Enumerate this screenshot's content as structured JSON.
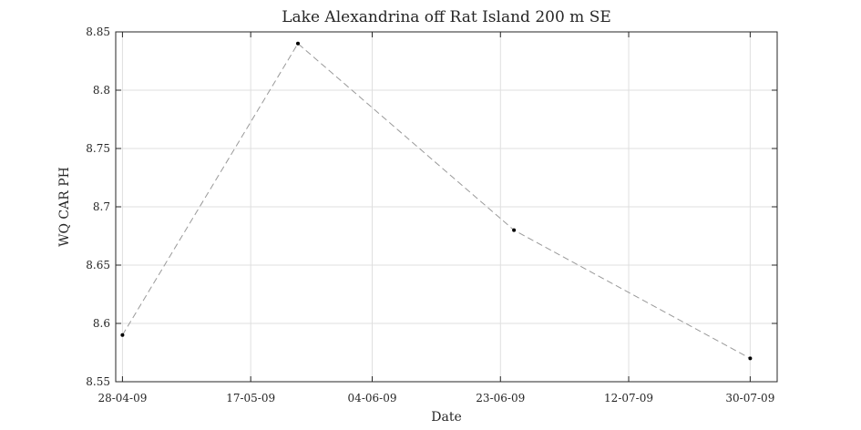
{
  "chart_data": {
    "type": "line",
    "title": "Lake Alexandrina off Rat Island 200 m SE",
    "xlabel": "Date",
    "ylabel": "WQ CAR PH",
    "x_ticks": [
      "28-04-09",
      "17-05-09",
      "04-06-09",
      "23-06-09",
      "12-07-09",
      "30-07-09"
    ],
    "y_ticks": [
      "8.55",
      "8.6",
      "8.65",
      "8.7",
      "8.75",
      "8.8",
      "8.85"
    ],
    "xlim": [
      "2009-04-27",
      "2009-08-03"
    ],
    "ylim": [
      8.55,
      8.85
    ],
    "grid": true,
    "line_style": "dashed",
    "line_color": "#999999",
    "marker_color": "#000000",
    "series": [
      {
        "x": [
          "2009-04-28",
          "2009-05-24",
          "2009-06-25",
          "2009-07-30"
        ],
        "y": [
          8.59,
          8.84,
          8.68,
          8.57
        ]
      }
    ]
  }
}
